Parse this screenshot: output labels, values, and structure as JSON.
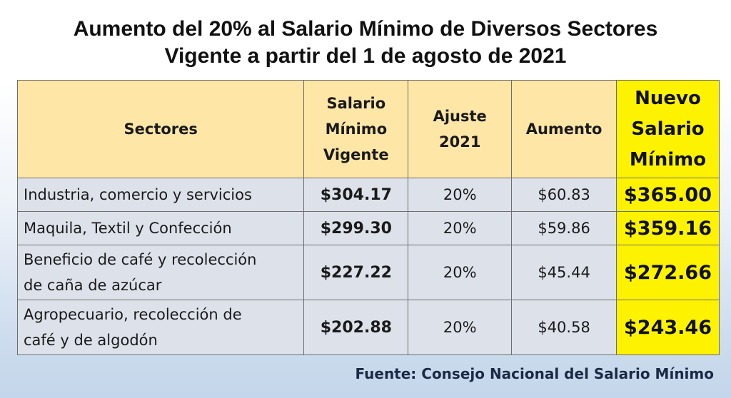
{
  "title": {
    "line1": "Aumento del 20% al Salario Mínimo de Diversos Sectores",
    "line2": "Vigente a partir del 1 de agosto de 2021"
  },
  "table": {
    "headers": {
      "sectores": "Sectores",
      "vigente": [
        "Salario",
        "Mínimo",
        "Vigente"
      ],
      "ajuste": [
        "Ajuste",
        "2021"
      ],
      "aumento": "Aumento",
      "nuevo": [
        "Nuevo",
        "Salario",
        "Mínimo"
      ]
    },
    "rows": [
      {
        "sector": [
          "Industria, comercio y servicios"
        ],
        "vigente": "$304.17",
        "ajuste": "20%",
        "aumento": "$60.83",
        "nuevo": "$365.00"
      },
      {
        "sector": [
          "Maquila, Textil y Confección"
        ],
        "vigente": "$299.30",
        "ajuste": "20%",
        "aumento": "$59.86",
        "nuevo": "$359.16"
      },
      {
        "sector": [
          "Beneficio de café y recolección",
          "de caña de azúcar"
        ],
        "vigente": "$227.22",
        "ajuste": "20%",
        "aumento": "$45.44",
        "nuevo": "$272.66"
      },
      {
        "sector": [
          "Agropecuario, recolección de",
          "café y de algodón"
        ],
        "vigente": "$202.88",
        "ajuste": "20%",
        "aumento": "$40.58",
        "nuevo": "$243.46"
      }
    ]
  },
  "source": "Fuente: Consejo Nacional del Salario Mínimo",
  "colors": {
    "header_bg": "#fde6a6",
    "highlight_yellow": "#fdf300",
    "cell_bg": "#dde2ea",
    "source_text": "#1b2a44"
  }
}
